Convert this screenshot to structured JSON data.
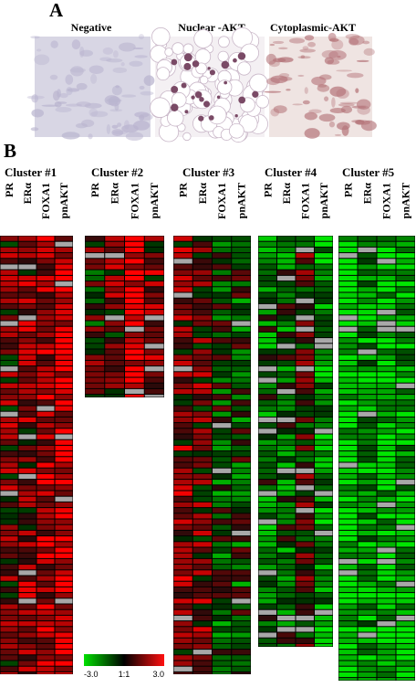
{
  "panel_a": {
    "label": "A",
    "images": [
      {
        "caption": "Negative"
      },
      {
        "caption": "Nuclear -AKT"
      },
      {
        "caption": "Cytoplasmic-AKT"
      }
    ]
  },
  "panel_b": {
    "label": "B",
    "clusters": [
      {
        "title": "Cluster #1",
        "columns": [
          "PR",
          "ERα",
          "FOXA1",
          "pnAKT"
        ]
      },
      {
        "title": "Cluster #2",
        "columns": [
          "PR",
          "ERα",
          "FOXA1",
          "pnAKT"
        ]
      },
      {
        "title": "Cluster #3",
        "columns": [
          "PR",
          "ERα",
          "FOXA1",
          "pnAKT"
        ]
      },
      {
        "title": "Cluster #4",
        "columns": [
          "PR",
          "ERα",
          "FOXA1",
          "pnAKT"
        ]
      },
      {
        "title": "Cluster #5",
        "columns": [
          "PR",
          "ERα",
          "FOXA1",
          "pnAKT"
        ]
      }
    ]
  },
  "color_scale": {
    "labels": [
      "-3.0",
      "1:1",
      "3.0"
    ]
  }
}
